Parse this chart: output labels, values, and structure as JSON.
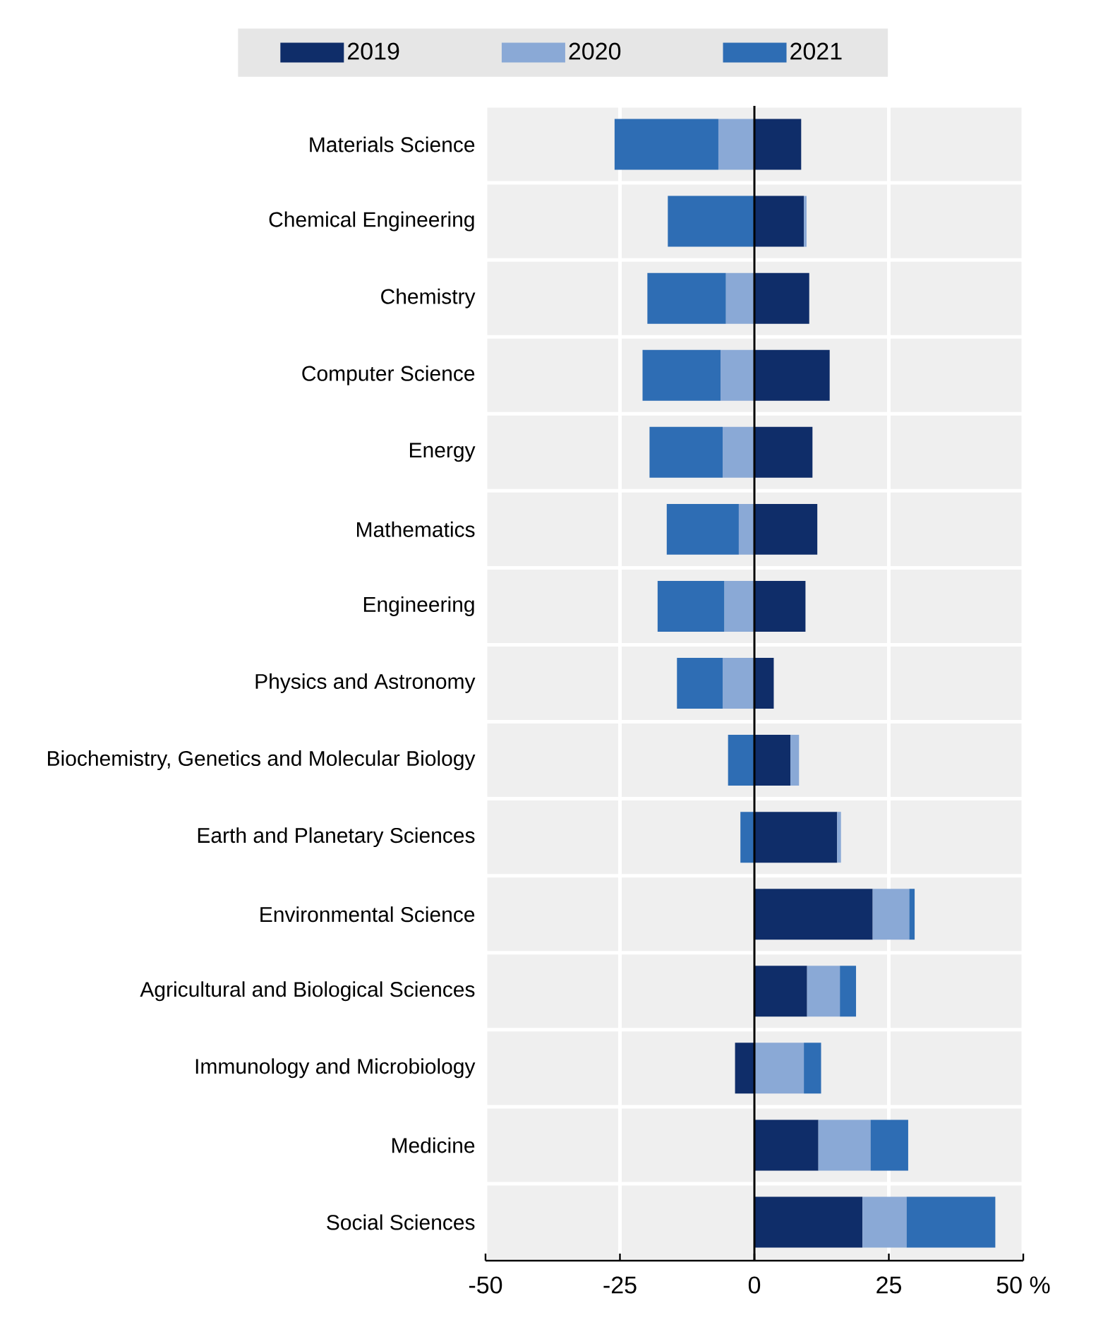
{
  "chart_data": {
    "type": "bar",
    "orientation": "horizontal",
    "stacked": true,
    "categories": [
      "Materials Science",
      "Chemical Engineering",
      "Chemistry",
      "Computer Science",
      "Energy",
      "Mathematics",
      "Engineering",
      "Physics and Astronomy",
      "Biochemistry, Genetics and Molecular Biology",
      "Earth and Planetary Sciences",
      "Environmental Science",
      "Agricultural and Biological Sciences",
      "Immunology and Microbiology",
      "Medicine",
      "Social Sciences"
    ],
    "series": [
      {
        "name": "2019",
        "color": "#0f2d69",
        "values": [
          8.7,
          9.2,
          10.2,
          14.0,
          10.8,
          11.7,
          9.5,
          3.6,
          6.7,
          15.4,
          22.0,
          9.8,
          -3.6,
          11.9,
          20.1
        ]
      },
      {
        "name": "2020",
        "color": "#8aa9d6",
        "values": [
          -6.7,
          0.5,
          -5.3,
          -6.3,
          -5.9,
          -2.9,
          -5.6,
          -5.9,
          1.6,
          0.7,
          6.8,
          6.1,
          9.2,
          9.7,
          8.2
        ]
      },
      {
        "name": "2021",
        "color": "#2e6db4",
        "values": [
          -19.3,
          -16.1,
          -14.6,
          -14.5,
          -13.6,
          -13.4,
          -12.4,
          -8.5,
          -4.9,
          -2.6,
          1.0,
          3.0,
          3.2,
          7.0,
          16.5
        ]
      }
    ],
    "xlim": [
      -50,
      50
    ],
    "xticks": [
      -50,
      -25,
      0,
      25,
      {
        "value": 50,
        "label": "50 %"
      }
    ],
    "grid": true,
    "legend": "top"
  }
}
